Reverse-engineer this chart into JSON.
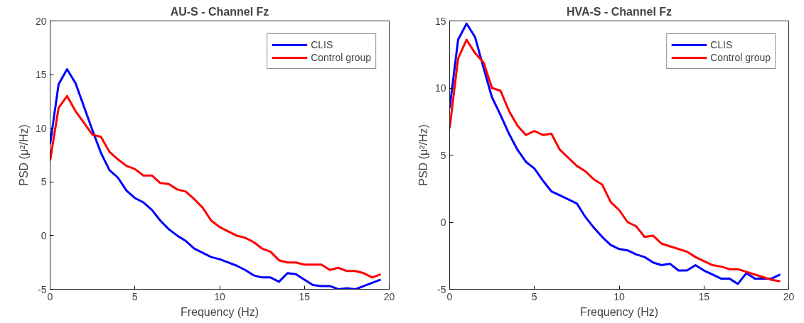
{
  "chart_data": [
    {
      "type": "line",
      "title": "AU-S - Channel Fz",
      "xlabel": "Frequency (Hz)",
      "ylabel": "PSD (μ²/Hz)",
      "x": [
        0,
        0.5,
        1,
        1.5,
        2,
        2.5,
        3,
        3.5,
        4,
        4.5,
        5,
        5.5,
        6,
        6.5,
        7,
        7.5,
        8,
        8.5,
        9,
        9.5,
        10,
        10.5,
        11,
        11.5,
        12,
        12.5,
        13,
        13.5,
        14,
        14.5,
        15,
        15.5,
        16,
        16.5,
        17,
        17.5,
        18,
        18.5,
        19,
        19.5
      ],
      "series": [
        {
          "name": "CLIS",
          "color": "#0000ff",
          "values": [
            8.5,
            14.1,
            15.5,
            14.2,
            12,
            9.8,
            7.7,
            6.1,
            5.4,
            4.2,
            3.5,
            3.1,
            2.4,
            1.4,
            0.6,
            0,
            -0.5,
            -1.2,
            -1.6,
            -2,
            -2.2,
            -2.5,
            -2.8,
            -3.2,
            -3.7,
            -3.9,
            -3.9,
            -4.3,
            -3.5,
            -3.6,
            -4.1,
            -4.6,
            -4.7,
            -4.7,
            -5,
            -4.9,
            -5,
            -4.7,
            -4.4,
            -4.1
          ]
        },
        {
          "name": "Control group",
          "color": "#ff0000",
          "values": [
            7,
            11.9,
            13,
            11.6,
            10.5,
            9.4,
            9.2,
            7.8,
            7.1,
            6.5,
            6.2,
            5.6,
            5.6,
            4.9,
            4.8,
            4.3,
            4.1,
            3.4,
            2.6,
            1.4,
            0.8,
            0.4,
            0,
            -0.2,
            -0.6,
            -1.2,
            -1.5,
            -2.3,
            -2.5,
            -2.5,
            -2.7,
            -2.7,
            -2.7,
            -3.2,
            -3,
            -3.3,
            -3.3,
            -3.5,
            -3.9,
            -3.6
          ]
        }
      ],
      "xlim": [
        0,
        20
      ],
      "xticks": [
        0,
        5,
        10,
        15,
        20
      ],
      "ylim": [
        -5,
        20
      ],
      "yticks": [
        -5,
        0,
        5,
        10,
        15,
        20
      ],
      "grid": false,
      "legend": "top right",
      "marker": "none",
      "line_style": "solid"
    },
    {
      "type": "line",
      "title": "HVA-S - Channel Fz",
      "xlabel": "Frequency (Hz)",
      "ylabel": "PSD (μ²/Hz)",
      "x": [
        0,
        0.5,
        1,
        1.5,
        2,
        2.5,
        3,
        3.5,
        4,
        4.5,
        5,
        5.5,
        6,
        6.5,
        7,
        7.5,
        8,
        8.5,
        9,
        9.5,
        10,
        10.5,
        11,
        11.5,
        12,
        12.5,
        13,
        13.5,
        14,
        14.5,
        15,
        15.5,
        16,
        16.5,
        17,
        17.5,
        18,
        18.5,
        19,
        19.5
      ],
      "series": [
        {
          "name": "CLIS",
          "color": "#0000ff",
          "values": [
            8.5,
            13.6,
            14.8,
            13.8,
            11.5,
            9.3,
            8,
            6.6,
            5.4,
            4.5,
            4,
            3.1,
            2.3,
            2,
            1.7,
            1.4,
            0.4,
            -0.4,
            -1.1,
            -1.7,
            -2,
            -2.1,
            -2.4,
            -2.6,
            -3,
            -3.2,
            -3.1,
            -3.6,
            -3.6,
            -3.2,
            -3.6,
            -3.9,
            -4.2,
            -4.2,
            -4.6,
            -3.8,
            -4.2,
            -4.2,
            -4.2,
            -3.9
          ]
        },
        {
          "name": "Control group",
          "color": "#ff0000",
          "values": [
            7,
            12.2,
            13.6,
            12.6,
            11.9,
            10,
            9.8,
            8.3,
            7.2,
            6.5,
            6.8,
            6.5,
            6.6,
            5.4,
            4.8,
            4.2,
            3.8,
            3.2,
            2.8,
            1.5,
            0.9,
            0,
            -0.3,
            -1.1,
            -1,
            -1.6,
            -1.8,
            -2,
            -2.2,
            -2.6,
            -2.9,
            -3.2,
            -3.3,
            -3.5,
            -3.5,
            -3.7,
            -3.9,
            -4.1,
            -4.3,
            -4.4
          ]
        }
      ],
      "xlim": [
        0,
        20
      ],
      "xticks": [
        0,
        5,
        10,
        15,
        20
      ],
      "ylim": [
        -5,
        15
      ],
      "yticks": [
        -5,
        0,
        5,
        10,
        15
      ],
      "grid": false,
      "legend": "top right",
      "marker": "none",
      "line_style": "solid"
    }
  ]
}
